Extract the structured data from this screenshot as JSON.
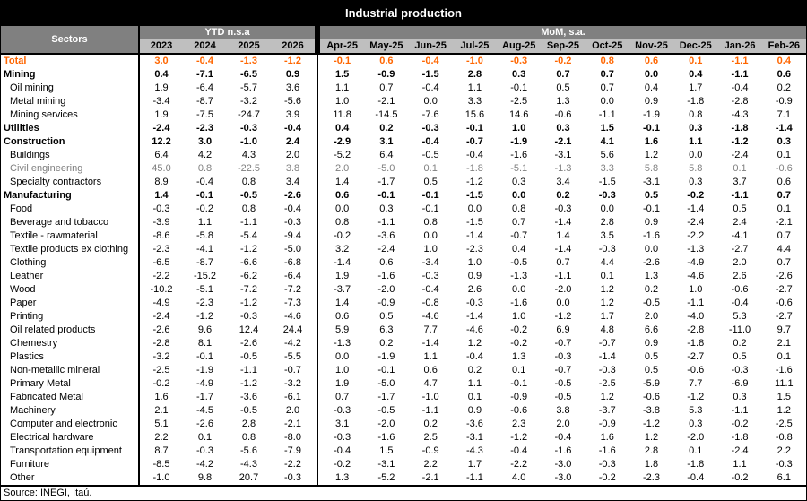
{
  "colors": {
    "title_bar_bg": "#000000",
    "header_dark_gray": "#808080",
    "header_light_gray": "#BFBFBF",
    "total_row_orange": "#FF6600",
    "muted_row_gray": "#7F7F7F"
  },
  "chart_data": {
    "type": "table",
    "title": "Industrial production",
    "source": "Source: INEGI, Itaú.",
    "sectors_label": "Sectors",
    "col_groups": [
      {
        "label": "YTD n.s.a",
        "span": 4
      },
      {
        "label": "MoM, s.a.",
        "span": 11
      }
    ],
    "ytd_columns": [
      "2023",
      "2024",
      "2025",
      "2026"
    ],
    "mom_columns": [
      "Apr-25",
      "May-25",
      "Jun-25",
      "Jul-25",
      "Aug-25",
      "Sep-25",
      "Oct-25",
      "Nov-25",
      "Dec-25",
      "Jan-26",
      "Feb-26"
    ],
    "rows": [
      {
        "sector": "Total",
        "style": "total",
        "ytd": [
          "3.0",
          "-0.4",
          "-1.3",
          "-1.2"
        ],
        "mom": [
          "-0.1",
          "0.6",
          "-0.4",
          "-1.0",
          "-0.3",
          "-0.2",
          "0.8",
          "0.6",
          "0.1",
          "-1.1",
          "0.4"
        ]
      },
      {
        "sector": "Mining",
        "style": "section",
        "ytd": [
          "0.4",
          "-7.1",
          "-6.5",
          "0.9"
        ],
        "mom": [
          "1.5",
          "-0.9",
          "-1.5",
          "2.8",
          "0.3",
          "0.7",
          "0.7",
          "0.0",
          "0.4",
          "-1.1",
          "0.6"
        ]
      },
      {
        "sector": "Oil mining",
        "style": "sub",
        "ytd": [
          "1.9",
          "-6.4",
          "-5.7",
          "3.6"
        ],
        "mom": [
          "1.1",
          "0.7",
          "-0.4",
          "1.1",
          "-0.1",
          "0.5",
          "0.7",
          "0.4",
          "1.7",
          "-0.4",
          "0.2"
        ]
      },
      {
        "sector": "Metal mining",
        "style": "sub",
        "ytd": [
          "-3.4",
          "-8.7",
          "-3.2",
          "-5.6"
        ],
        "mom": [
          "1.0",
          "-2.1",
          "0.0",
          "3.3",
          "-2.5",
          "1.3",
          "0.0",
          "0.9",
          "-1.8",
          "-2.8",
          "-0.9"
        ]
      },
      {
        "sector": "Mining services",
        "style": "sub",
        "ytd": [
          "1.9",
          "-7.5",
          "-24.7",
          "3.9"
        ],
        "mom": [
          "11.8",
          "-14.5",
          "-7.6",
          "15.6",
          "14.6",
          "-0.6",
          "-1.1",
          "-1.9",
          "0.8",
          "-4.3",
          "7.1"
        ]
      },
      {
        "sector": "Utilities",
        "style": "section",
        "ytd": [
          "-2.4",
          "-2.3",
          "-0.3",
          "-0.4"
        ],
        "mom": [
          "0.4",
          "0.2",
          "-0.3",
          "-0.1",
          "1.0",
          "0.3",
          "1.5",
          "-0.1",
          "0.3",
          "-1.8",
          "-1.4"
        ]
      },
      {
        "sector": "Construction",
        "style": "section",
        "ytd": [
          "12.2",
          "3.0",
          "-1.0",
          "2.4"
        ],
        "mom": [
          "-2.9",
          "3.1",
          "-0.4",
          "-0.7",
          "-1.9",
          "-2.1",
          "4.1",
          "1.6",
          "1.1",
          "-1.2",
          "0.3"
        ]
      },
      {
        "sector": "Buildings",
        "style": "sub",
        "ytd": [
          "6.4",
          "4.2",
          "4.3",
          "2.0"
        ],
        "mom": [
          "-5.2",
          "6.4",
          "-0.5",
          "-0.4",
          "-1.6",
          "-3.1",
          "5.6",
          "1.2",
          "0.0",
          "-2.4",
          "0.1"
        ]
      },
      {
        "sector": "Civil engineering",
        "style": "sub muted",
        "ytd": [
          "45.0",
          "0.8",
          "-22.5",
          "3.8"
        ],
        "mom": [
          "2.0",
          "-5.0",
          "0.1",
          "-1.8",
          "-5.1",
          "-1.3",
          "3.3",
          "5.8",
          "5.8",
          "0.1",
          "-0.6"
        ]
      },
      {
        "sector": "Specialty contractors",
        "style": "sub",
        "ytd": [
          "8.9",
          "-0.4",
          "0.8",
          "3.4"
        ],
        "mom": [
          "1.4",
          "-1.7",
          "0.5",
          "-1.2",
          "0.3",
          "3.4",
          "-1.5",
          "-3.1",
          "0.3",
          "3.7",
          "0.6"
        ]
      },
      {
        "sector": "Manufacturing",
        "style": "section",
        "ytd": [
          "1.4",
          "-0.1",
          "-0.5",
          "-2.6"
        ],
        "mom": [
          "0.6",
          "-0.1",
          "-0.1",
          "-1.5",
          "0.0",
          "0.2",
          "-0.3",
          "0.5",
          "-0.2",
          "-1.1",
          "0.7"
        ]
      },
      {
        "sector": "Food",
        "style": "sub",
        "ytd": [
          "-0.3",
          "-0.2",
          "0.8",
          "-0.4"
        ],
        "mom": [
          "0.0",
          "0.3",
          "-0.1",
          "0.0",
          "0.8",
          "-0.3",
          "0.0",
          "-0.1",
          "-1.4",
          "0.5",
          "0.1"
        ]
      },
      {
        "sector": "Beverage and tobacco",
        "style": "sub",
        "ytd": [
          "-3.9",
          "1.1",
          "-1.1",
          "-0.3"
        ],
        "mom": [
          "0.8",
          "-1.1",
          "0.8",
          "-1.5",
          "0.7",
          "-1.4",
          "2.8",
          "0.9",
          "-2.4",
          "2.4",
          "-2.1"
        ]
      },
      {
        "sector": "Textile - rawmaterial",
        "style": "sub",
        "ytd": [
          "-8.6",
          "-5.8",
          "-5.4",
          "-9.4"
        ],
        "mom": [
          "-0.2",
          "-3.6",
          "0.0",
          "-1.4",
          "-0.7",
          "1.4",
          "3.5",
          "-1.6",
          "-2.2",
          "-4.1",
          "0.7"
        ]
      },
      {
        "sector": "Textile products ex clothing",
        "style": "sub",
        "ytd": [
          "-2.3",
          "-4.1",
          "-1.2",
          "-5.0"
        ],
        "mom": [
          "3.2",
          "-2.4",
          "1.0",
          "-2.3",
          "0.4",
          "-1.4",
          "-0.3",
          "0.0",
          "-1.3",
          "-2.7",
          "4.4"
        ]
      },
      {
        "sector": "Clothing",
        "style": "sub",
        "ytd": [
          "-6.5",
          "-8.7",
          "-6.6",
          "-6.8"
        ],
        "mom": [
          "-1.4",
          "0.6",
          "-3.4",
          "1.0",
          "-0.5",
          "0.7",
          "4.4",
          "-2.6",
          "-4.9",
          "2.0",
          "0.7"
        ]
      },
      {
        "sector": "Leather",
        "style": "sub",
        "ytd": [
          "-2.2",
          "-15.2",
          "-6.2",
          "-6.4"
        ],
        "mom": [
          "1.9",
          "-1.6",
          "-0.3",
          "0.9",
          "-1.3",
          "-1.1",
          "0.1",
          "1.3",
          "-4.6",
          "2.6",
          "-2.6"
        ]
      },
      {
        "sector": "Wood",
        "style": "sub",
        "ytd": [
          "-10.2",
          "-5.1",
          "-7.2",
          "-7.2"
        ],
        "mom": [
          "-3.7",
          "-2.0",
          "-0.4",
          "2.6",
          "0.0",
          "-2.0",
          "1.2",
          "0.2",
          "1.0",
          "-0.6",
          "-2.7"
        ]
      },
      {
        "sector": "Paper",
        "style": "sub",
        "ytd": [
          "-4.9",
          "-2.3",
          "-1.2",
          "-7.3"
        ],
        "mom": [
          "1.4",
          "-0.9",
          "-0.8",
          "-0.3",
          "-1.6",
          "0.0",
          "1.2",
          "-0.5",
          "-1.1",
          "-0.4",
          "-0.6"
        ]
      },
      {
        "sector": "Printing",
        "style": "sub",
        "ytd": [
          "-2.4",
          "-1.2",
          "-0.3",
          "-4.6"
        ],
        "mom": [
          "0.6",
          "0.5",
          "-4.6",
          "-1.4",
          "1.0",
          "-1.2",
          "1.7",
          "2.0",
          "-4.0",
          "5.3",
          "-2.7"
        ]
      },
      {
        "sector": "Oil related products",
        "style": "sub",
        "ytd": [
          "-2.6",
          "9.6",
          "12.4",
          "24.4"
        ],
        "mom": [
          "5.9",
          "6.3",
          "7.7",
          "-4.6",
          "-0.2",
          "6.9",
          "4.8",
          "6.6",
          "-2.8",
          "-11.0",
          "9.7"
        ]
      },
      {
        "sector": "Chemestry",
        "style": "sub",
        "ytd": [
          "-2.8",
          "8.1",
          "-2.6",
          "-4.2"
        ],
        "mom": [
          "-1.3",
          "0.2",
          "-1.4",
          "1.2",
          "-0.2",
          "-0.7",
          "-0.7",
          "0.9",
          "-1.8",
          "0.2",
          "2.1"
        ]
      },
      {
        "sector": "Plastics",
        "style": "sub",
        "ytd": [
          "-3.2",
          "-0.1",
          "-0.5",
          "-5.5"
        ],
        "mom": [
          "0.0",
          "-1.9",
          "1.1",
          "-0.4",
          "1.3",
          "-0.3",
          "-1.4",
          "0.5",
          "-2.7",
          "0.5",
          "0.1"
        ]
      },
      {
        "sector": "Non-metallic mineral",
        "style": "sub",
        "ytd": [
          "-2.5",
          "-1.9",
          "-1.1",
          "-0.7"
        ],
        "mom": [
          "1.0",
          "-0.1",
          "0.6",
          "0.2",
          "0.1",
          "-0.7",
          "-0.3",
          "0.5",
          "-0.6",
          "-0.3",
          "-1.6"
        ]
      },
      {
        "sector": "Primary Metal",
        "style": "sub",
        "ytd": [
          "-0.2",
          "-4.9",
          "-1.2",
          "-3.2"
        ],
        "mom": [
          "1.9",
          "-5.0",
          "4.7",
          "1.1",
          "-0.1",
          "-0.5",
          "-2.5",
          "-5.9",
          "7.7",
          "-6.9",
          "11.1"
        ]
      },
      {
        "sector": "Fabricated Metal",
        "style": "sub",
        "ytd": [
          "1.6",
          "-1.7",
          "-3.6",
          "-6.1"
        ],
        "mom": [
          "0.7",
          "-1.7",
          "-1.0",
          "0.1",
          "-0.9",
          "-0.5",
          "1.2",
          "-0.6",
          "-1.2",
          "0.3",
          "1.5"
        ]
      },
      {
        "sector": "Machinery",
        "style": "sub",
        "ytd": [
          "2.1",
          "-4.5",
          "-0.5",
          "2.0"
        ],
        "mom": [
          "-0.3",
          "-0.5",
          "-1.1",
          "0.9",
          "-0.6",
          "3.8",
          "-3.7",
          "-3.8",
          "5.3",
          "-1.1",
          "1.2"
        ]
      },
      {
        "sector": "Computer and electronic",
        "style": "sub",
        "ytd": [
          "5.1",
          "-2.6",
          "2.8",
          "-2.1"
        ],
        "mom": [
          "3.1",
          "-2.0",
          "0.2",
          "-3.6",
          "2.3",
          "2.0",
          "-0.9",
          "-1.2",
          "0.3",
          "-0.2",
          "-2.5"
        ]
      },
      {
        "sector": "Electrical hardware",
        "style": "sub",
        "ytd": [
          "2.2",
          "0.1",
          "0.8",
          "-8.0"
        ],
        "mom": [
          "-0.3",
          "-1.6",
          "2.5",
          "-3.1",
          "-1.2",
          "-0.4",
          "1.6",
          "1.2",
          "-2.0",
          "-1.8",
          "-0.8"
        ]
      },
      {
        "sector": "Transportation equipment",
        "style": "sub",
        "ytd": [
          "8.7",
          "-0.3",
          "-5.6",
          "-7.9"
        ],
        "mom": [
          "-0.4",
          "1.5",
          "-0.9",
          "-4.3",
          "-0.4",
          "-1.6",
          "-1.6",
          "2.8",
          "0.1",
          "-2.4",
          "2.2"
        ]
      },
      {
        "sector": "Furniture",
        "style": "sub",
        "ytd": [
          "-8.5",
          "-4.2",
          "-4.3",
          "-2.2"
        ],
        "mom": [
          "-0.2",
          "-3.1",
          "2.2",
          "1.7",
          "-2.2",
          "-3.0",
          "-0.3",
          "1.8",
          "-1.8",
          "1.1",
          "-0.3"
        ]
      },
      {
        "sector": "Other",
        "style": "sub",
        "ytd": [
          "-1.0",
          "9.8",
          "20.7",
          "-0.3"
        ],
        "mom": [
          "1.3",
          "-5.2",
          "-2.1",
          "-1.1",
          "4.0",
          "-3.0",
          "-0.2",
          "-2.3",
          "-0.4",
          "-0.2",
          "6.1"
        ]
      }
    ]
  }
}
